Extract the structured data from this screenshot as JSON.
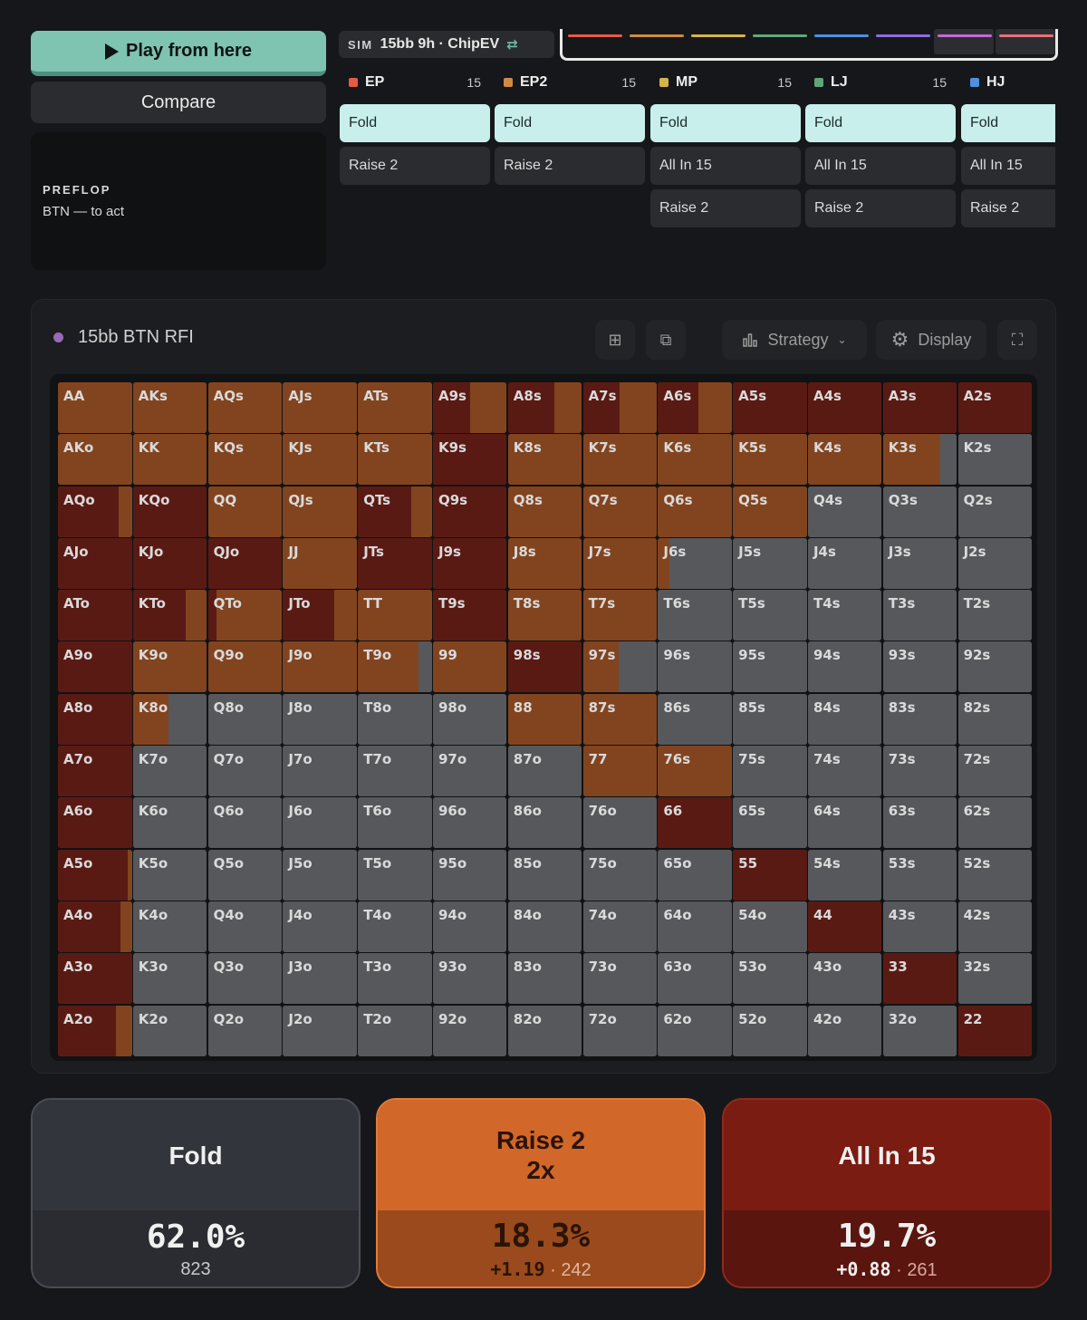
{
  "controls": {
    "play_label": "Play from here",
    "compare_label": "Compare"
  },
  "state": {
    "street": "PREFLOP",
    "to_act": "BTN — to act"
  },
  "sim": {
    "tag": "SIM",
    "name": "15bb 9h · ChipEV",
    "swap_icon": "swap-icon"
  },
  "position_bar": {
    "colors": [
      "#e45b46",
      "#d08a42",
      "#d4b44a",
      "#5fa77a",
      "#4f8fe0",
      "#8f6ce0",
      "#c46ad4",
      "#e8707a"
    ]
  },
  "columns": [
    {
      "pos": "EP",
      "stack": "15",
      "color": "#e45b46",
      "actions": [
        "Fold",
        "Raise 2"
      ]
    },
    {
      "pos": "EP2",
      "stack": "15",
      "color": "#d08a42",
      "actions": [
        "Fold",
        "Raise 2"
      ]
    },
    {
      "pos": "MP",
      "stack": "15",
      "color": "#d4b44a",
      "actions": [
        "Fold",
        "All In 15",
        "Raise 2"
      ]
    },
    {
      "pos": "LJ",
      "stack": "15",
      "color": "#5fa77a",
      "actions": [
        "Fold",
        "All In 15",
        "Raise 2"
      ]
    },
    {
      "pos": "HJ",
      "stack": "",
      "color": "#4f8fe0",
      "actions": [
        "Fold",
        "All In 15",
        "Raise 2"
      ]
    }
  ],
  "panel": {
    "title": "15bb BTN RFI",
    "strategy_label": "Strategy",
    "display_label": "Display"
  },
  "colors": {
    "fold": "#56585c",
    "raise": "#82441f",
    "allin": "#5a1a14"
  },
  "matrix": {
    "rows": [
      [
        "AA",
        "AKs",
        "AQs",
        "AJs",
        "ATs",
        "A9s",
        "A8s",
        "A7s",
        "A6s",
        "A5s",
        "A4s",
        "A3s",
        "A2s"
      ],
      [
        "AKo",
        "KK",
        "KQs",
        "KJs",
        "KTs",
        "K9s",
        "K8s",
        "K7s",
        "K6s",
        "K5s",
        "K4s",
        "K3s",
        "K2s"
      ],
      [
        "AQo",
        "KQo",
        "QQ",
        "QJs",
        "QTs",
        "Q9s",
        "Q8s",
        "Q7s",
        "Q6s",
        "Q5s",
        "Q4s",
        "Q3s",
        "Q2s"
      ],
      [
        "AJo",
        "KJo",
        "QJo",
        "JJ",
        "JTs",
        "J9s",
        "J8s",
        "J7s",
        "J6s",
        "J5s",
        "J4s",
        "J3s",
        "J2s"
      ],
      [
        "ATo",
        "KTo",
        "QTo",
        "JTo",
        "TT",
        "T9s",
        "T8s",
        "T7s",
        "T6s",
        "T5s",
        "T4s",
        "T3s",
        "T2s"
      ],
      [
        "A9o",
        "K9o",
        "Q9o",
        "J9o",
        "T9o",
        "99",
        "98s",
        "97s",
        "96s",
        "95s",
        "94s",
        "93s",
        "92s"
      ],
      [
        "A8o",
        "K8o",
        "Q8o",
        "J8o",
        "T8o",
        "98o",
        "88",
        "87s",
        "86s",
        "85s",
        "84s",
        "83s",
        "82s"
      ],
      [
        "A7o",
        "K7o",
        "Q7o",
        "J7o",
        "T7o",
        "97o",
        "87o",
        "77",
        "76s",
        "75s",
        "74s",
        "73s",
        "72s"
      ],
      [
        "A6o",
        "K6o",
        "Q6o",
        "J6o",
        "T6o",
        "96o",
        "86o",
        "76o",
        "66",
        "65s",
        "64s",
        "63s",
        "62s"
      ],
      [
        "A5o",
        "K5o",
        "Q5o",
        "J5o",
        "T5o",
        "95o",
        "85o",
        "75o",
        "65o",
        "55",
        "54s",
        "53s",
        "52s"
      ],
      [
        "A4o",
        "K4o",
        "Q4o",
        "J4o",
        "T4o",
        "94o",
        "84o",
        "74o",
        "64o",
        "54o",
        "44",
        "43s",
        "42s"
      ],
      [
        "A3o",
        "K3o",
        "Q3o",
        "J3o",
        "T3o",
        "93o",
        "83o",
        "73o",
        "63o",
        "53o",
        "43o",
        "33",
        "32s"
      ],
      [
        "A2o",
        "K2o",
        "Q2o",
        "J2o",
        "T2o",
        "92o",
        "82o",
        "72o",
        "62o",
        "52o",
        "42o",
        "32o",
        "22"
      ]
    ],
    "mix": {
      "AA": [
        0,
        1,
        0
      ],
      "AKs": [
        0,
        1,
        0
      ],
      "AQs": [
        0,
        1,
        0
      ],
      "AJs": [
        0,
        1,
        0
      ],
      "ATs": [
        0,
        1,
        0
      ],
      "A9s": [
        0,
        0.5,
        0.5
      ],
      "A8s": [
        0,
        0.37,
        0.63
      ],
      "A7s": [
        0,
        0.5,
        0.5
      ],
      "A6s": [
        0,
        0.45,
        0.55
      ],
      "A5s": [
        0,
        0,
        1
      ],
      "A4s": [
        0,
        0,
        1
      ],
      "A3s": [
        0,
        0,
        1
      ],
      "A2s": [
        0,
        0,
        1
      ],
      "AKo": [
        0,
        1,
        0
      ],
      "KK": [
        0,
        1,
        0
      ],
      "KQs": [
        0,
        1,
        0
      ],
      "KJs": [
        0,
        1,
        0
      ],
      "KTs": [
        0,
        1,
        0
      ],
      "K9s": [
        0,
        0,
        1
      ],
      "K8s": [
        0,
        1,
        0
      ],
      "K7s": [
        0,
        1,
        0
      ],
      "K6s": [
        0,
        1,
        0
      ],
      "K5s": [
        0,
        1,
        0
      ],
      "K4s": [
        0,
        1,
        0
      ],
      "K3s": [
        0.22,
        0.78,
        0
      ],
      "K2s": [
        1,
        0,
        0
      ],
      "AQo": [
        0,
        0.18,
        0.82
      ],
      "KQo": [
        0,
        0,
        1
      ],
      "QQ": [
        0,
        1,
        0
      ],
      "QJs": [
        0,
        1,
        0
      ],
      "QTs": [
        0,
        0.28,
        0.72
      ],
      "Q9s": [
        0,
        0,
        1
      ],
      "Q8s": [
        0,
        1,
        0
      ],
      "Q7s": [
        0,
        1,
        0
      ],
      "Q6s": [
        0,
        1,
        0
      ],
      "Q5s": [
        0,
        1,
        0
      ],
      "Q4s": [
        1,
        0,
        0
      ],
      "Q3s": [
        1,
        0,
        0
      ],
      "Q2s": [
        1,
        0,
        0
      ],
      "AJo": [
        0,
        0,
        1
      ],
      "KJo": [
        0,
        0,
        1
      ],
      "QJo": [
        0,
        0,
        1
      ],
      "JJ": [
        0,
        1,
        0
      ],
      "JTs": [
        0,
        0,
        1
      ],
      "J9s": [
        0,
        0,
        1
      ],
      "J8s": [
        0,
        1,
        0
      ],
      "J7s": [
        0,
        1,
        0
      ],
      "J6s": [
        0.85,
        0.15,
        0
      ],
      "J5s": [
        1,
        0,
        0
      ],
      "J4s": [
        1,
        0,
        0
      ],
      "J3s": [
        1,
        0,
        0
      ],
      "J2s": [
        1,
        0,
        0
      ],
      "ATo": [
        0,
        0,
        1
      ],
      "KTo": [
        0,
        0.28,
        0.72
      ],
      "QTo": [
        0,
        0.88,
        0.12
      ],
      "JTo": [
        0,
        0.3,
        0.7
      ],
      "TT": [
        0,
        1,
        0
      ],
      "T9s": [
        0,
        0,
        1
      ],
      "T8s": [
        0,
        1,
        0
      ],
      "T7s": [
        0,
        1,
        0
      ],
      "T6s": [
        1,
        0,
        0
      ],
      "T5s": [
        1,
        0,
        0
      ],
      "T4s": [
        1,
        0,
        0
      ],
      "T3s": [
        1,
        0,
        0
      ],
      "T2s": [
        1,
        0,
        0
      ],
      "A9o": [
        0,
        0,
        1
      ],
      "K9o": [
        0,
        1,
        0
      ],
      "Q9o": [
        0,
        1,
        0
      ],
      "J9o": [
        0,
        1,
        0
      ],
      "T9o": [
        0.18,
        0.82,
        0
      ],
      "99": [
        0,
        1,
        0
      ],
      "98s": [
        0,
        0,
        1
      ],
      "97s": [
        0.52,
        0.48,
        0
      ],
      "96s": [
        1,
        0,
        0
      ],
      "95s": [
        1,
        0,
        0
      ],
      "94s": [
        1,
        0,
        0
      ],
      "93s": [
        1,
        0,
        0
      ],
      "92s": [
        1,
        0,
        0
      ],
      "A8o": [
        0,
        0,
        1
      ],
      "K8o": [
        0.52,
        0.48,
        0
      ],
      "Q8o": [
        1,
        0,
        0
      ],
      "J8o": [
        1,
        0,
        0
      ],
      "T8o": [
        1,
        0,
        0
      ],
      "98o": [
        1,
        0,
        0
      ],
      "88": [
        0,
        1,
        0
      ],
      "87s": [
        0,
        1,
        0
      ],
      "86s": [
        1,
        0,
        0
      ],
      "85s": [
        1,
        0,
        0
      ],
      "84s": [
        1,
        0,
        0
      ],
      "83s": [
        1,
        0,
        0
      ],
      "82s": [
        1,
        0,
        0
      ],
      "A7o": [
        0,
        0,
        1
      ],
      "K7o": [
        1,
        0,
        0
      ],
      "Q7o": [
        1,
        0,
        0
      ],
      "J7o": [
        1,
        0,
        0
      ],
      "T7o": [
        1,
        0,
        0
      ],
      "97o": [
        1,
        0,
        0
      ],
      "87o": [
        1,
        0,
        0
      ],
      "77": [
        0,
        1,
        0
      ],
      "76s": [
        0,
        1,
        0
      ],
      "75s": [
        1,
        0,
        0
      ],
      "74s": [
        1,
        0,
        0
      ],
      "73s": [
        1,
        0,
        0
      ],
      "72s": [
        1,
        0,
        0
      ],
      "A6o": [
        0,
        0,
        1
      ],
      "K6o": [
        1,
        0,
        0
      ],
      "Q6o": [
        1,
        0,
        0
      ],
      "J6o": [
        1,
        0,
        0
      ],
      "T6o": [
        1,
        0,
        0
      ],
      "96o": [
        1,
        0,
        0
      ],
      "86o": [
        1,
        0,
        0
      ],
      "76o": [
        1,
        0,
        0
      ],
      "66": [
        0,
        0,
        1
      ],
      "65s": [
        1,
        0,
        0
      ],
      "64s": [
        1,
        0,
        0
      ],
      "63s": [
        1,
        0,
        0
      ],
      "62s": [
        1,
        0,
        0
      ],
      "A5o": [
        0,
        0.05,
        0.95
      ],
      "K5o": [
        1,
        0,
        0
      ],
      "Q5o": [
        1,
        0,
        0
      ],
      "J5o": [
        1,
        0,
        0
      ],
      "T5o": [
        1,
        0,
        0
      ],
      "95o": [
        1,
        0,
        0
      ],
      "85o": [
        1,
        0,
        0
      ],
      "75o": [
        1,
        0,
        0
      ],
      "65o": [
        1,
        0,
        0
      ],
      "55": [
        0,
        0,
        1
      ],
      "54s": [
        1,
        0,
        0
      ],
      "53s": [
        1,
        0,
        0
      ],
      "52s": [
        1,
        0,
        0
      ],
      "A4o": [
        0,
        0.15,
        0.85
      ],
      "K4o": [
        1,
        0,
        0
      ],
      "Q4o": [
        1,
        0,
        0
      ],
      "J4o": [
        1,
        0,
        0
      ],
      "T4o": [
        1,
        0,
        0
      ],
      "94o": [
        1,
        0,
        0
      ],
      "84o": [
        1,
        0,
        0
      ],
      "74o": [
        1,
        0,
        0
      ],
      "64o": [
        1,
        0,
        0
      ],
      "54o": [
        1,
        0,
        0
      ],
      "44": [
        0,
        0,
        1
      ],
      "43s": [
        1,
        0,
        0
      ],
      "42s": [
        1,
        0,
        0
      ],
      "A3o": [
        0,
        0,
        1
      ],
      "K3o": [
        1,
        0,
        0
      ],
      "Q3o": [
        1,
        0,
        0
      ],
      "J3o": [
        1,
        0,
        0
      ],
      "T3o": [
        1,
        0,
        0
      ],
      "93o": [
        1,
        0,
        0
      ],
      "83o": [
        1,
        0,
        0
      ],
      "73o": [
        1,
        0,
        0
      ],
      "63o": [
        1,
        0,
        0
      ],
      "53o": [
        1,
        0,
        0
      ],
      "43o": [
        1,
        0,
        0
      ],
      "33": [
        0,
        0,
        1
      ],
      "32s": [
        1,
        0,
        0
      ],
      "A2o": [
        0,
        0.22,
        0.78
      ],
      "K2o": [
        1,
        0,
        0
      ],
      "Q2o": [
        1,
        0,
        0
      ],
      "J2o": [
        1,
        0,
        0
      ],
      "T2o": [
        1,
        0,
        0
      ],
      "92o": [
        1,
        0,
        0
      ],
      "82o": [
        1,
        0,
        0
      ],
      "72o": [
        1,
        0,
        0
      ],
      "62o": [
        1,
        0,
        0
      ],
      "52o": [
        1,
        0,
        0
      ],
      "42o": [
        1,
        0,
        0
      ],
      "32o": [
        1,
        0,
        0
      ],
      "22": [
        0,
        0,
        1
      ]
    }
  },
  "summary": [
    {
      "label": "Fold",
      "label2": "",
      "pct": "62.0%",
      "ev": "",
      "sep": "",
      "count": "823",
      "bg_top": "#32353b",
      "bg_bot": "#2a2c31",
      "border": "#4a4d54",
      "sub_color": "#c9c9c9"
    },
    {
      "label": "Raise 2",
      "label2": "2x",
      "pct": "18.3%",
      "ev": "+1.19",
      "sep": "·",
      "count": "242",
      "bg_top": "#d2672a",
      "bg_bot": "#9a4a1c",
      "border": "#e37a3a",
      "sub_color": "#e0b89c"
    },
    {
      "label": "All In 15",
      "label2": "",
      "pct": "19.7%",
      "ev": "+0.88",
      "sep": "·",
      "count": "261",
      "bg_top": "#7a1c12",
      "bg_bot": "#5a150e",
      "border": "#8e2b1e",
      "sub_color": "#d8a8a0"
    }
  ]
}
